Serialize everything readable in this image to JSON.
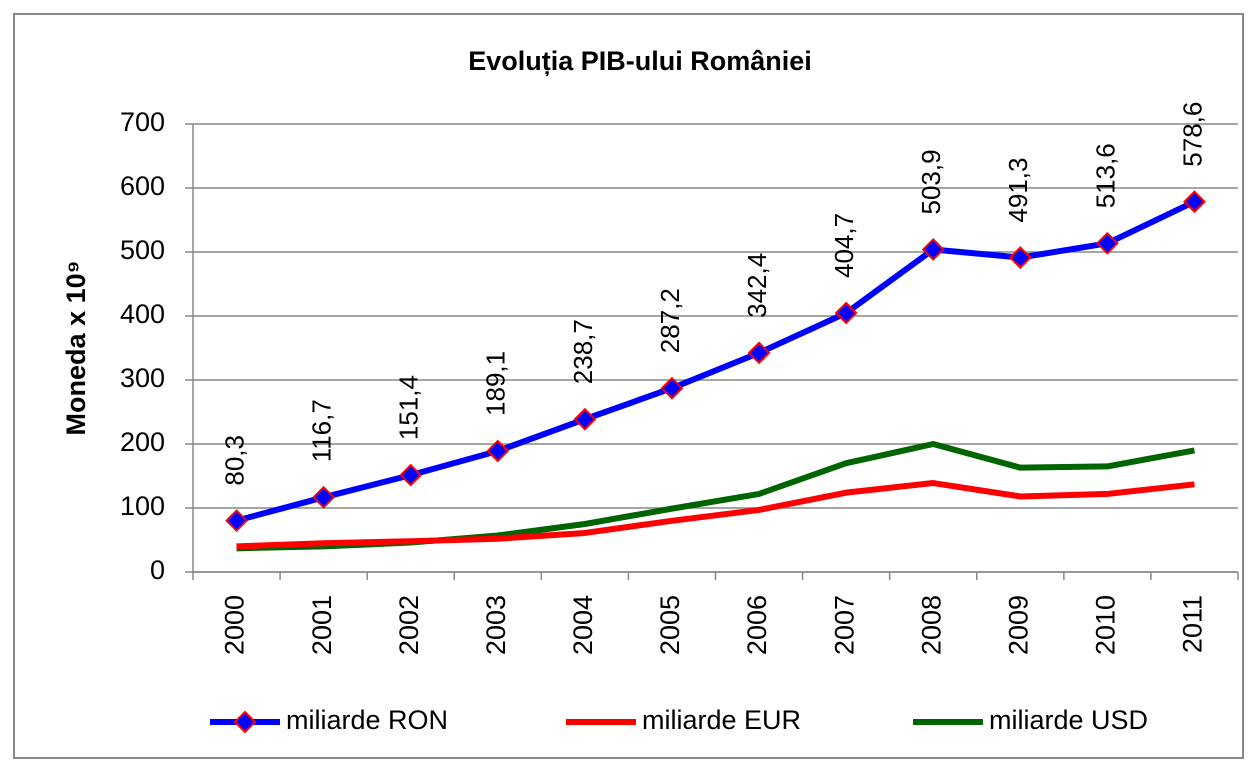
{
  "chart_data": {
    "type": "line",
    "title": "Evoluția PIB-ului României",
    "y_label": "Moneda x 10⁹",
    "categories": [
      "2000",
      "2001",
      "2002",
      "2003",
      "2004",
      "2005",
      "2006",
      "2007",
      "2008",
      "2009",
      "2010",
      "2011"
    ],
    "series": [
      {
        "name": "miliarde RON",
        "color": "#0000ff",
        "marker_color": "#ff0000",
        "marker": "diamond",
        "values": [
          80.3,
          116.7,
          151.4,
          189.1,
          238.7,
          287.2,
          342.4,
          404.7,
          503.9,
          491.3,
          513.6,
          578.6
        ],
        "value_labels": [
          "80,3",
          "116,7",
          "151,4",
          "189,1",
          "238,7",
          "287,2",
          "342,4",
          "404,7",
          "503,9",
          "491,3",
          "513,6",
          "578,6"
        ]
      },
      {
        "name": "miliarde EUR",
        "color": "#ff0000",
        "values": [
          40,
          45,
          48,
          52,
          61,
          80,
          97,
          124,
          139,
          118,
          122,
          137
        ]
      },
      {
        "name": "miliarde USD",
        "color": "#006400",
        "values": [
          37,
          40,
          46,
          57,
          75,
          99,
          122,
          170,
          200,
          163,
          165,
          190
        ]
      }
    ],
    "ylim": [
      0,
      700
    ],
    "yticks": [
      0,
      100,
      200,
      300,
      400,
      500,
      600,
      700
    ],
    "grid": true,
    "legend": "bottom"
  }
}
